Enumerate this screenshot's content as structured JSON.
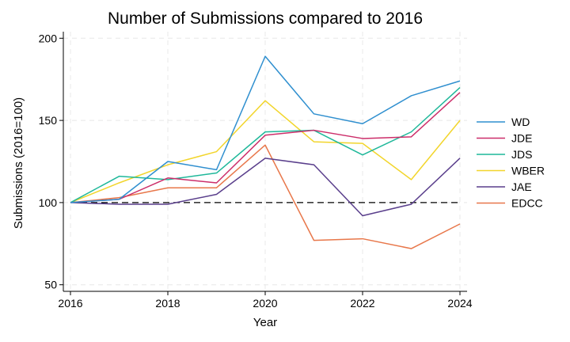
{
  "chart_data": {
    "type": "line",
    "title": "Number of Submissions compared to 2016",
    "xlabel": "Year",
    "ylabel": "Submissions (2016=100)",
    "x": [
      2016,
      2017,
      2018,
      2019,
      2020,
      2021,
      2022,
      2023,
      2024
    ],
    "xticks": [
      2016,
      2018,
      2020,
      2022,
      2024
    ],
    "yticks": [
      50,
      100,
      150,
      200
    ],
    "xlim": [
      2016,
      2024
    ],
    "ylim": [
      46,
      204
    ],
    "grid": true,
    "legend": "right",
    "reference_line": {
      "y": 100,
      "style": "dashed",
      "color": "#000000"
    },
    "series": [
      {
        "name": "WD",
        "color": "#2f8fcf",
        "values": [
          100,
          102,
          125,
          120,
          189,
          154,
          148,
          165,
          174
        ]
      },
      {
        "name": "JDE",
        "color": "#cc2e6a",
        "values": [
          100,
          102,
          115,
          112,
          141,
          144,
          139,
          140,
          167
        ]
      },
      {
        "name": "JDS",
        "color": "#1fb89a",
        "values": [
          100,
          116,
          114,
          118,
          143,
          144,
          129,
          143,
          170
        ]
      },
      {
        "name": "WBER",
        "color": "#f2d52c",
        "values": [
          100,
          112,
          123,
          131,
          162,
          137,
          136,
          114,
          150
        ]
      },
      {
        "name": "JAE",
        "color": "#5a3f8c",
        "values": [
          100,
          99,
          99,
          105,
          127,
          123,
          92,
          99,
          127
        ]
      },
      {
        "name": "EDCC",
        "color": "#e8774a",
        "values": [
          100,
          103,
          109,
          109,
          135,
          77,
          78,
          72,
          87
        ]
      }
    ]
  }
}
